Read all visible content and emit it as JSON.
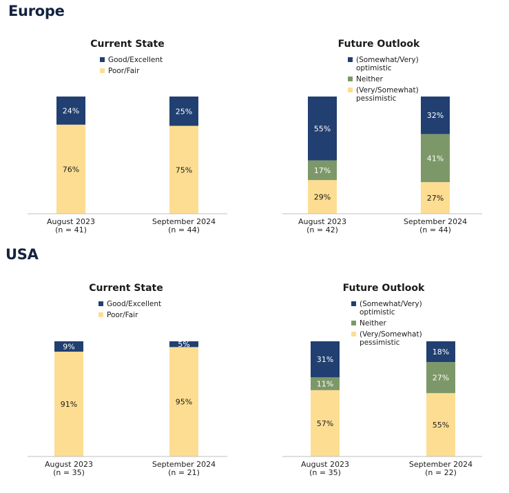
{
  "sections": [
    {
      "title": "Europe"
    },
    {
      "title": "USA"
    }
  ],
  "colors": {
    "good": "#213f70",
    "optimistic": "#213f70",
    "neither": "#7d9868",
    "poor": "#fddd92",
    "axis": "#bfbfbf"
  },
  "chart_data": [
    {
      "type": "bar",
      "stacked": true,
      "region": "Europe",
      "title": "Current State",
      "categories": [
        "August 2023",
        "September 2024"
      ],
      "category_n": [
        "(n = 41)",
        "(n = 44)"
      ],
      "series": [
        {
          "name": "Poor/Fair",
          "color": "#fddd92",
          "values": [
            76,
            75
          ],
          "labels": [
            "76%",
            "75%"
          ]
        },
        {
          "name": "Good/Excellent",
          "color": "#213f70",
          "values": [
            24,
            25
          ],
          "labels": [
            "24%",
            "25%"
          ]
        }
      ],
      "legend": [
        "Good/Excellent",
        "Poor/Fair"
      ],
      "legend_lines": [
        [
          "Good/Excellent"
        ],
        [
          "Poor/Fair"
        ]
      ],
      "legend_colors": [
        "#213f70",
        "#fddd92"
      ],
      "ylim": [
        0,
        100
      ]
    },
    {
      "type": "bar",
      "stacked": true,
      "region": "Europe",
      "title": "Future Outlook",
      "categories": [
        "August 2023",
        "September 2024"
      ],
      "category_n": [
        "(n = 42)",
        "(n = 44)"
      ],
      "series": [
        {
          "name": "(Very/Somewhat) pessimistic",
          "color": "#fddd92",
          "values": [
            29,
            27
          ],
          "labels": [
            "29%",
            "27%"
          ]
        },
        {
          "name": "Neither",
          "color": "#7d9868",
          "values": [
            17,
            41
          ],
          "labels": [
            "17%",
            "41%"
          ]
        },
        {
          "name": "(Somewhat/Very) optimistic",
          "color": "#213f70",
          "values": [
            55,
            32
          ],
          "labels": [
            "55%",
            "32%"
          ]
        }
      ],
      "legend": [
        "(Somewhat/Very) optimistic",
        "Neither",
        "(Very/Somewhat) pessimistic"
      ],
      "legend_lines": [
        [
          "(Somewhat/Very)",
          "optimistic"
        ],
        [
          "Neither"
        ],
        [
          "(Very/Somewhat)",
          "pessimistic"
        ]
      ],
      "legend_colors": [
        "#213f70",
        "#7d9868",
        "#fddd92"
      ],
      "ylim": [
        0,
        100
      ]
    },
    {
      "type": "bar",
      "stacked": true,
      "region": "USA",
      "title": "Current State",
      "categories": [
        "August 2023",
        "September 2024"
      ],
      "category_n": [
        "(n = 35)",
        "(n = 21)"
      ],
      "series": [
        {
          "name": "Poor/Fair",
          "color": "#fddd92",
          "values": [
            91,
            95
          ],
          "labels": [
            "91%",
            "95%"
          ]
        },
        {
          "name": "Good/Excellent",
          "color": "#213f70",
          "values": [
            9,
            5
          ],
          "labels": [
            "9%",
            "5%"
          ]
        }
      ],
      "legend": [
        "Good/Excellent",
        "Poor/Fair"
      ],
      "legend_lines": [
        [
          "Good/Excellent"
        ],
        [
          "Poor/Fair"
        ]
      ],
      "legend_colors": [
        "#213f70",
        "#fddd92"
      ],
      "ylim": [
        0,
        100
      ]
    },
    {
      "type": "bar",
      "stacked": true,
      "region": "USA",
      "title": "Future Outlook",
      "categories": [
        "August 2023",
        "September 2024"
      ],
      "category_n": [
        "(n = 35)",
        "(n = 22)"
      ],
      "series": [
        {
          "name": "(Very/Somewhat) pessimistic",
          "color": "#fddd92",
          "values": [
            57,
            55
          ],
          "labels": [
            "57%",
            "55%"
          ]
        },
        {
          "name": "Neither",
          "color": "#7d9868",
          "values": [
            11,
            27
          ],
          "labels": [
            "11%",
            "27%"
          ]
        },
        {
          "name": "(Somewhat/Very) optimistic",
          "color": "#213f70",
          "values": [
            31,
            18
          ],
          "labels": [
            "31%",
            "18%"
          ]
        }
      ],
      "legend": [
        "(Somewhat/Very) optimistic",
        "Neither",
        "(Very/Somewhat) pessimistic"
      ],
      "legend_lines": [
        [
          "(Somewhat/Very)",
          "optimistic"
        ],
        [
          "Neither"
        ],
        [
          "(Very/Somewhat)",
          "pessimistic"
        ]
      ],
      "legend_colors": [
        "#213f70",
        "#7d9868",
        "#fddd92"
      ],
      "ylim": [
        0,
        100
      ]
    }
  ]
}
